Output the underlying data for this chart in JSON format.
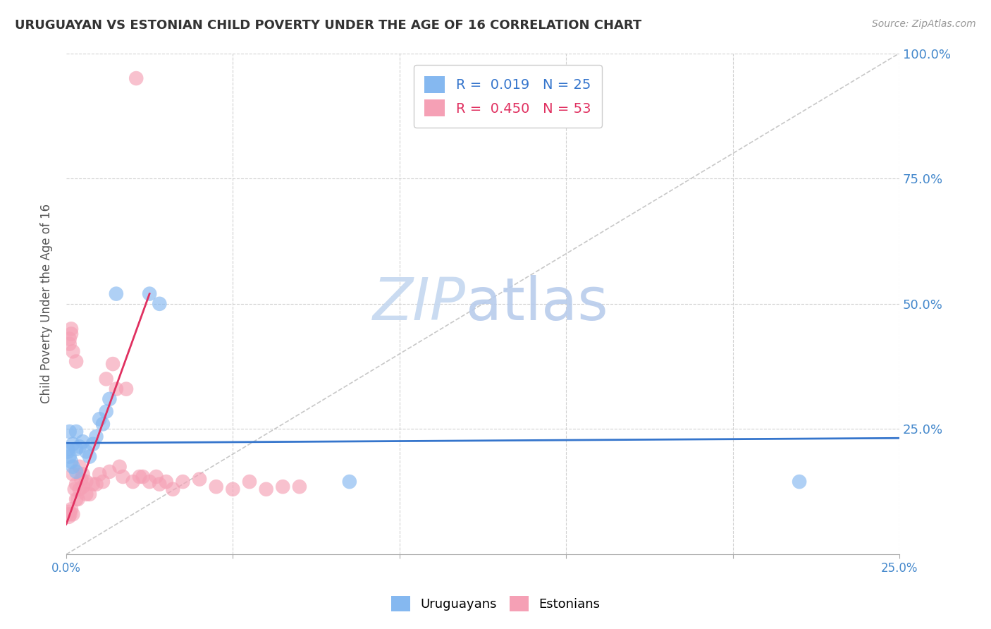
{
  "title": "URUGUAYAN VS ESTONIAN CHILD POVERTY UNDER THE AGE OF 16 CORRELATION CHART",
  "source": "Source: ZipAtlas.com",
  "ylabel": "Child Poverty Under the Age of 16",
  "xlim": [
    0.0,
    0.25
  ],
  "ylim": [
    0.0,
    1.0
  ],
  "xticks": [
    0.0,
    0.25
  ],
  "yticks": [
    0.0,
    0.25,
    0.5,
    0.75,
    1.0
  ],
  "xtick_labels": [
    "0.0%",
    "25.0%"
  ],
  "grid_color": "#d0d0d0",
  "background_color": "#ffffff",
  "watermark_zip": "ZIP",
  "watermark_atlas": "atlas",
  "watermark_color_zip": "#c8d8ee",
  "watermark_color_atlas": "#c8d8ee",
  "uruguayan_color": "#85b8f0",
  "estonian_color": "#f5a0b5",
  "uruguayan_line_color": "#3575cc",
  "estonian_line_color": "#e03060",
  "diagonal_color": "#c8c8c8",
  "legend_r_uruguayan": "0.019",
  "legend_n_uruguayan": "25",
  "legend_r_estonian": "0.450",
  "legend_n_estonian": "53",
  "uruguayan_x": [
    0.0005,
    0.001,
    0.0015,
    0.002,
    0.002,
    0.003,
    0.003,
    0.004,
    0.005,
    0.006,
    0.007,
    0.008,
    0.009,
    0.01,
    0.011,
    0.012,
    0.013,
    0.015,
    0.025,
    0.028,
    0.085,
    0.22,
    0.001,
    0.003,
    0.0005
  ],
  "uruguayan_y": [
    0.21,
    0.195,
    0.185,
    0.22,
    0.175,
    0.21,
    0.165,
    0.215,
    0.225,
    0.205,
    0.195,
    0.22,
    0.235,
    0.27,
    0.26,
    0.285,
    0.31,
    0.52,
    0.52,
    0.5,
    0.145,
    0.145,
    0.245,
    0.245,
    0.205
  ],
  "estonian_x": [
    0.0004,
    0.0008,
    0.001,
    0.0012,
    0.0015,
    0.002,
    0.002,
    0.0025,
    0.003,
    0.003,
    0.0035,
    0.004,
    0.004,
    0.0045,
    0.005,
    0.005,
    0.006,
    0.006,
    0.007,
    0.008,
    0.009,
    0.01,
    0.011,
    0.012,
    0.013,
    0.014,
    0.015,
    0.016,
    0.017,
    0.018,
    0.02,
    0.021,
    0.022,
    0.023,
    0.025,
    0.027,
    0.028,
    0.03,
    0.032,
    0.035,
    0.04,
    0.045,
    0.05,
    0.055,
    0.06,
    0.065,
    0.07,
    0.001,
    0.001,
    0.0015,
    0.0015,
    0.002,
    0.003
  ],
  "estonian_y": [
    0.08,
    0.075,
    0.085,
    0.08,
    0.09,
    0.08,
    0.16,
    0.13,
    0.11,
    0.14,
    0.11,
    0.13,
    0.175,
    0.15,
    0.135,
    0.16,
    0.12,
    0.145,
    0.12,
    0.14,
    0.14,
    0.16,
    0.145,
    0.35,
    0.165,
    0.38,
    0.33,
    0.175,
    0.155,
    0.33,
    0.145,
    0.95,
    0.155,
    0.155,
    0.145,
    0.155,
    0.14,
    0.145,
    0.13,
    0.145,
    0.15,
    0.135,
    0.13,
    0.145,
    0.13,
    0.135,
    0.135,
    0.42,
    0.43,
    0.44,
    0.45,
    0.405,
    0.385
  ],
  "estonian_line_x0": 0.0,
  "estonian_line_y0": 0.06,
  "estonian_line_x1": 0.025,
  "estonian_line_y1": 0.52,
  "uruguayan_line_x0": 0.0,
  "uruguayan_line_y0": 0.222,
  "uruguayan_line_x1": 0.25,
  "uruguayan_line_y1": 0.232
}
